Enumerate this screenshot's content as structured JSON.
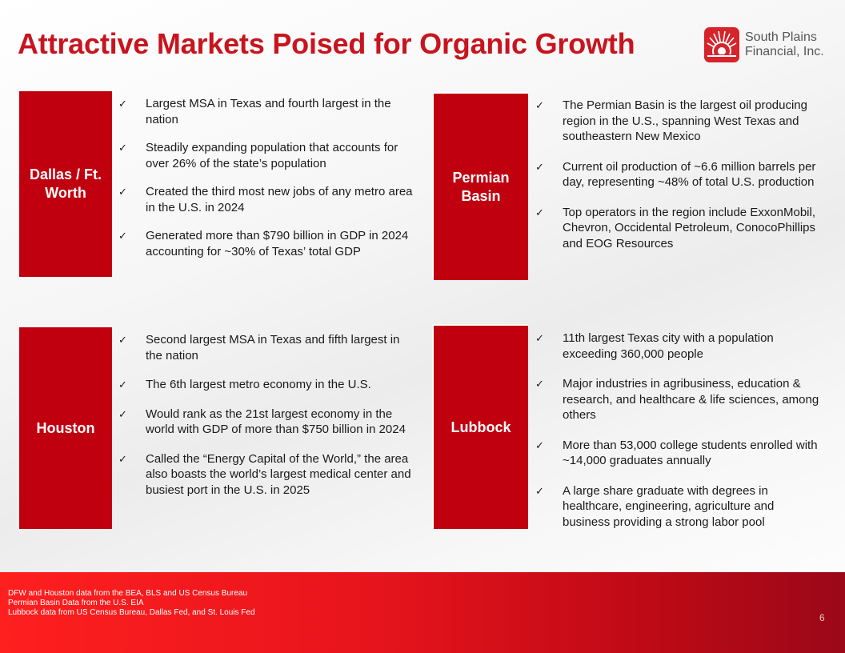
{
  "title": "Attractive Markets Poised for Organic Growth",
  "logo": {
    "line1": "South Plains",
    "line2": "Financial, Inc.",
    "icon": "sunburst-logo-icon"
  },
  "colors": {
    "accent": "#c0000f",
    "title": "#c8141e"
  },
  "markets": [
    {
      "label": "Dallas / Ft. Worth",
      "bullets": [
        "Largest MSA in Texas and fourth largest in the nation",
        "Steadily expanding population that accounts for over 26% of the state’s population",
        "Created the third most new jobs of any metro area in the U.S. in 2024",
        "Generated more than $790 billion in GDP in 2024 accounting for ~30% of Texas’ total GDP"
      ]
    },
    {
      "label": "Permian Basin",
      "bullets": [
        "The Permian Basin is the largest oil producing region in the U.S., spanning West Texas and southeastern New Mexico",
        "Current oil production of ~6.6 million barrels per day, representing ~48% of total U.S. production",
        "Top operators in the region include ExxonMobil, Chevron, Occidental Petroleum, ConocoPhillips and EOG Resources"
      ]
    },
    {
      "label": "Houston",
      "bullets": [
        "Second largest MSA in Texas and fifth largest in the nation",
        "The 6th largest metro economy in the U.S.",
        "Would rank as the 21st largest economy in the world with GDP of more than $750 billion in 2024",
        "Called the “Energy Capital of the World,” the area also boasts the world’s largest medical center and busiest port in the U.S. in 2025"
      ]
    },
    {
      "label": "Lubbock",
      "bullets": [
        "11th largest Texas city with a population exceeding 360,000 people",
        "Major industries in agribusiness, education & research, and healthcare & life sciences, among others",
        "More than 53,000 college students enrolled with ~14,000 graduates annually",
        "A large share graduate with degrees in healthcare, engineering, agriculture and business providing a strong labor pool"
      ]
    }
  ],
  "check_glyph": "✓",
  "footer": {
    "sources": [
      "DFW and Houston data from the BEA, BLS and US Census Bureau",
      "Permian Basin Data from the U.S. EIA",
      "Lubbock data from US Census Bureau, Dallas Fed, and St. Louis Fed"
    ],
    "page_number": "6"
  }
}
